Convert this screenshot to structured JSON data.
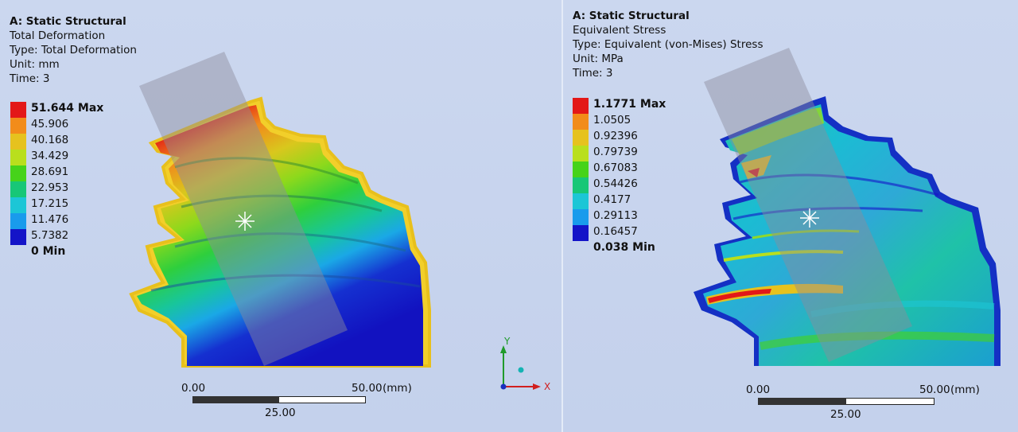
{
  "left": {
    "title": "A: Static Structural",
    "result_name": "Total Deformation",
    "type": "Type: Total Deformation",
    "unit": "Unit: mm",
    "time": "Time: 3",
    "legend": {
      "max": "51.644 Max",
      "values": [
        "45.906",
        "40.168",
        "34.429",
        "28.691",
        "22.953",
        "17.215",
        "11.476",
        "5.7382"
      ],
      "min": "0 Min",
      "colors": [
        "#e31818",
        "#f28c1a",
        "#e6c21e",
        "#b9df1d",
        "#46d31a",
        "#17c777",
        "#1cc6d6",
        "#199bec",
        "#1414c8"
      ]
    },
    "scale": {
      "start": "0.00",
      "end": "50.00",
      "unit": "(mm)",
      "mid": "25.00"
    }
  },
  "right": {
    "title": "A: Static Structural",
    "result_name": "Equivalent Stress",
    "type": "Type: Equivalent (von-Mises) Stress",
    "unit": "Unit: MPa",
    "time": "Time: 3",
    "legend": {
      "max": "1.1771 Max",
      "values": [
        "1.0505",
        "0.92396",
        "0.79739",
        "0.67083",
        "0.54426",
        "0.4177",
        "0.29113",
        "0.16457"
      ],
      "min": "0.038 Min",
      "colors": [
        "#e31818",
        "#f28c1a",
        "#e6c21e",
        "#b9df1d",
        "#46d31a",
        "#17c777",
        "#1cc6d6",
        "#199bec",
        "#1414c8"
      ]
    },
    "scale": {
      "start": "0.00",
      "end": "50.00",
      "unit": "(mm)",
      "mid": "25.00"
    }
  },
  "triad": {
    "y_label": "Y",
    "x_label": "X"
  }
}
